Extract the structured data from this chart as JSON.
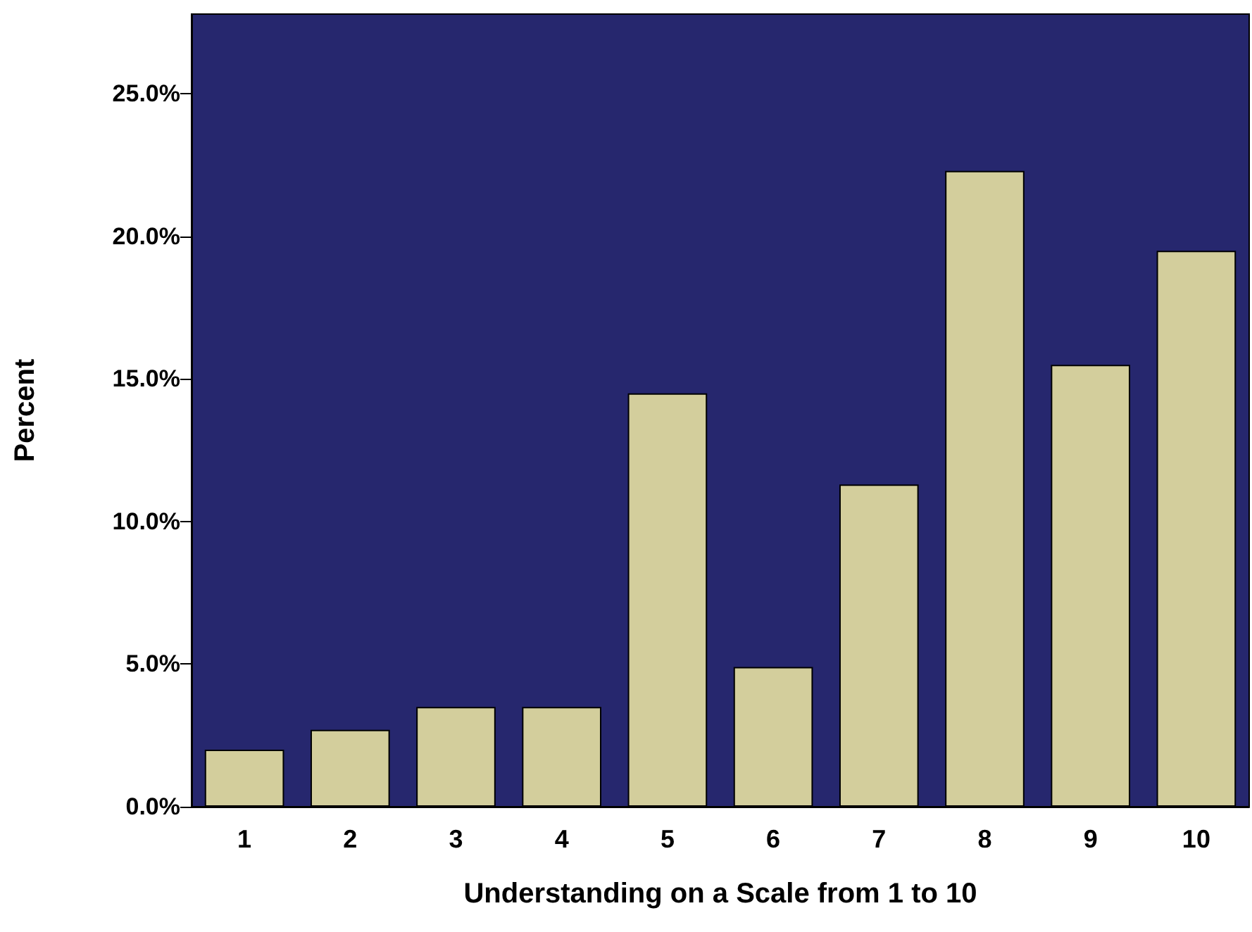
{
  "chart_data": {
    "type": "bar",
    "xlabel": "Understanding on a Scale from 1 to 10",
    "ylabel": "Percent",
    "categories": [
      "1",
      "2",
      "3",
      "4",
      "5",
      "6",
      "7",
      "8",
      "9",
      "10"
    ],
    "values": [
      2.0,
      2.7,
      3.5,
      3.5,
      14.5,
      4.9,
      11.3,
      22.3,
      15.5,
      19.5
    ],
    "color": "#d3ce9c",
    "ylim": [
      0,
      27.8
    ],
    "yticks": [
      {
        "value": 0,
        "label": "0.0%"
      },
      {
        "value": 5,
        "label": "5.0%"
      },
      {
        "value": 10,
        "label": "10.0%"
      },
      {
        "value": 15,
        "label": "15.0%"
      },
      {
        "value": 20,
        "label": "20.0%"
      },
      {
        "value": 25,
        "label": "25.0%"
      }
    ],
    "grid": false
  }
}
